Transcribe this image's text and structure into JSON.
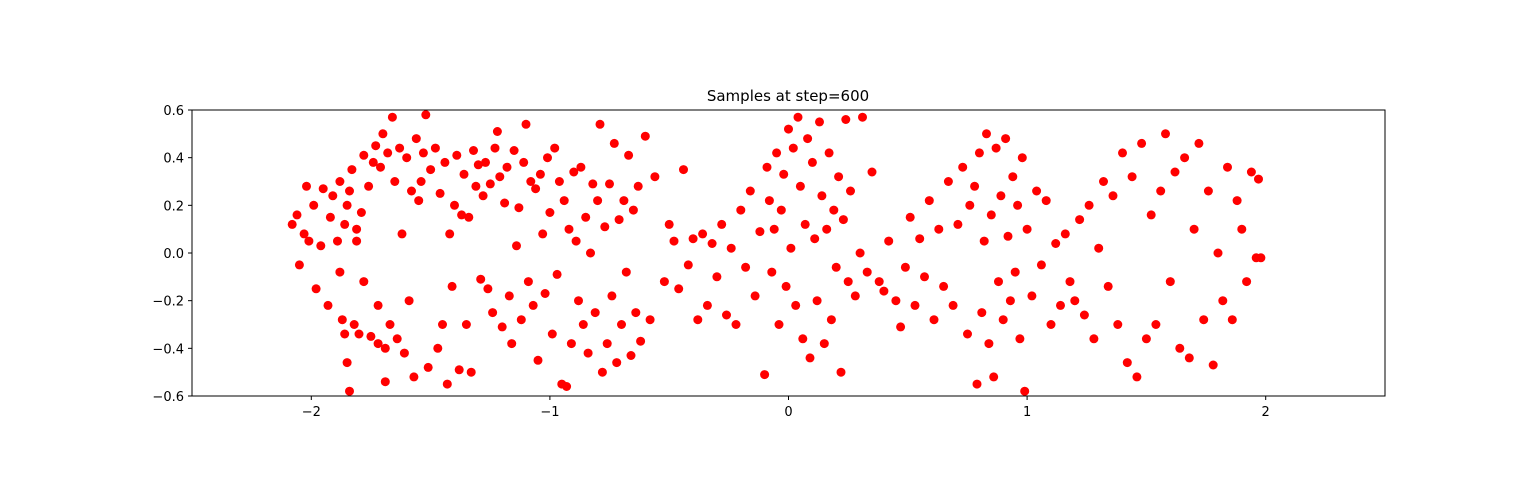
{
  "chart_data": {
    "type": "scatter",
    "title": "Samples at step=600",
    "xlabel": "",
    "ylabel": "",
    "xlim": [
      -2.5,
      2.5
    ],
    "ylim": [
      -0.6,
      0.6
    ],
    "xticks": [
      -2,
      -1,
      0,
      1,
      2
    ],
    "xtick_labels": [
      "−2",
      "−1",
      "0",
      "1",
      "2"
    ],
    "yticks": [
      -0.6,
      -0.4,
      -0.2,
      0.0,
      0.2,
      0.4,
      0.6
    ],
    "ytick_labels": [
      "−0.6",
      "−0.4",
      "−0.2",
      "0.0",
      "0.2",
      "0.4",
      "0.6"
    ],
    "grid": false,
    "marker_color": "#ff0000",
    "series": [
      {
        "points": [
          [
            -2.08,
            0.12
          ],
          [
            -2.06,
            0.16
          ],
          [
            -2.05,
            -0.05
          ],
          [
            -2.03,
            0.08
          ],
          [
            -2.02,
            0.28
          ],
          [
            -2.01,
            0.05
          ],
          [
            -1.99,
            0.2
          ],
          [
            -1.98,
            -0.15
          ],
          [
            -1.96,
            0.03
          ],
          [
            -1.95,
            0.27
          ],
          [
            -1.93,
            -0.22
          ],
          [
            -1.92,
            0.15
          ],
          [
            -1.91,
            0.24
          ],
          [
            -1.89,
            0.05
          ],
          [
            -1.88,
            -0.08
          ],
          [
            -1.88,
            0.3
          ],
          [
            -1.87,
            -0.28
          ],
          [
            -1.86,
            0.12
          ],
          [
            -1.86,
            -0.34
          ],
          [
            -1.85,
            0.2
          ],
          [
            -1.85,
            -0.46
          ],
          [
            -1.84,
            0.26
          ],
          [
            -1.84,
            -0.58
          ],
          [
            -1.83,
            0.35
          ],
          [
            -1.82,
            -0.3
          ],
          [
            -1.81,
            0.1
          ],
          [
            -1.81,
            0.05
          ],
          [
            -1.8,
            -0.34
          ],
          [
            -1.79,
            0.17
          ],
          [
            -1.78,
            0.41
          ],
          [
            -1.78,
            -0.12
          ],
          [
            -1.76,
            0.28
          ],
          [
            -1.75,
            -0.35
          ],
          [
            -1.74,
            0.38
          ],
          [
            -1.73,
            0.45
          ],
          [
            -1.72,
            -0.38
          ],
          [
            -1.72,
            -0.22
          ],
          [
            -1.71,
            0.36
          ],
          [
            -1.7,
            0.5
          ],
          [
            -1.69,
            -0.4
          ],
          [
            -1.69,
            -0.54
          ],
          [
            -1.68,
            0.42
          ],
          [
            -1.67,
            -0.3
          ],
          [
            -1.66,
            0.57
          ],
          [
            -1.65,
            0.3
          ],
          [
            -1.64,
            -0.36
          ],
          [
            -1.63,
            0.44
          ],
          [
            -1.62,
            0.08
          ],
          [
            -1.61,
            -0.42
          ],
          [
            -1.6,
            0.4
          ],
          [
            -1.59,
            -0.2
          ],
          [
            -1.58,
            0.26
          ],
          [
            -1.57,
            -0.52
          ],
          [
            -1.56,
            0.48
          ],
          [
            -1.55,
            0.22
          ],
          [
            -1.54,
            0.3
          ],
          [
            -1.53,
            0.42
          ],
          [
            -1.52,
            0.58
          ],
          [
            -1.51,
            -0.48
          ],
          [
            -1.5,
            0.35
          ],
          [
            -1.48,
            0.44
          ],
          [
            -1.47,
            -0.4
          ],
          [
            -1.46,
            0.25
          ],
          [
            -1.45,
            -0.3
          ],
          [
            -1.44,
            0.38
          ],
          [
            -1.43,
            -0.55
          ],
          [
            -1.42,
            0.08
          ],
          [
            -1.41,
            -0.14
          ],
          [
            -1.4,
            0.2
          ],
          [
            -1.39,
            0.41
          ],
          [
            -1.38,
            -0.49
          ],
          [
            -1.37,
            0.16
          ],
          [
            -1.36,
            0.33
          ],
          [
            -1.35,
            -0.3
          ],
          [
            -1.34,
            0.15
          ],
          [
            -1.33,
            -0.5
          ],
          [
            -1.32,
            0.43
          ],
          [
            -1.31,
            0.28
          ],
          [
            -1.3,
            0.37
          ],
          [
            -1.29,
            -0.11
          ],
          [
            -1.28,
            0.24
          ],
          [
            -1.27,
            0.38
          ],
          [
            -1.26,
            -0.15
          ],
          [
            -1.25,
            0.29
          ],
          [
            -1.24,
            -0.25
          ],
          [
            -1.23,
            0.44
          ],
          [
            -1.22,
            0.51
          ],
          [
            -1.21,
            0.32
          ],
          [
            -1.2,
            -0.31
          ],
          [
            -1.19,
            0.21
          ],
          [
            -1.18,
            0.36
          ],
          [
            -1.17,
            -0.18
          ],
          [
            -1.16,
            -0.38
          ],
          [
            -1.15,
            0.43
          ],
          [
            -1.14,
            0.03
          ],
          [
            -1.13,
            0.19
          ],
          [
            -1.12,
            -0.28
          ],
          [
            -1.11,
            0.38
          ],
          [
            -1.1,
            0.54
          ],
          [
            -1.09,
            -0.12
          ],
          [
            -1.08,
            0.3
          ],
          [
            -1.07,
            -0.22
          ],
          [
            -1.06,
            0.27
          ],
          [
            -1.05,
            -0.45
          ],
          [
            -1.04,
            0.33
          ],
          [
            -1.03,
            0.08
          ],
          [
            -1.02,
            -0.17
          ],
          [
            -1.01,
            0.4
          ],
          [
            -1.0,
            0.17
          ],
          [
            -0.99,
            -0.34
          ],
          [
            -0.98,
            0.44
          ],
          [
            -0.97,
            -0.09
          ],
          [
            -0.96,
            0.3
          ],
          [
            -0.95,
            -0.55
          ],
          [
            -0.94,
            0.22
          ],
          [
            -0.93,
            -0.56
          ],
          [
            -0.92,
            0.1
          ],
          [
            -0.91,
            -0.38
          ],
          [
            -0.9,
            0.34
          ],
          [
            -0.89,
            0.05
          ],
          [
            -0.88,
            -0.2
          ],
          [
            -0.87,
            0.36
          ],
          [
            -0.86,
            -0.3
          ],
          [
            -0.85,
            0.15
          ],
          [
            -0.84,
            -0.42
          ],
          [
            -0.83,
            0.0
          ],
          [
            -0.82,
            0.29
          ],
          [
            -0.81,
            -0.25
          ],
          [
            -0.8,
            0.22
          ],
          [
            -0.79,
            0.54
          ],
          [
            -0.78,
            -0.5
          ],
          [
            -0.77,
            0.11
          ],
          [
            -0.76,
            -0.38
          ],
          [
            -0.75,
            0.29
          ],
          [
            -0.74,
            -0.18
          ],
          [
            -0.73,
            0.46
          ],
          [
            -0.72,
            -0.46
          ],
          [
            -0.71,
            0.14
          ],
          [
            -0.7,
            -0.3
          ],
          [
            -0.69,
            0.22
          ],
          [
            -0.68,
            -0.08
          ],
          [
            -0.67,
            0.41
          ],
          [
            -0.66,
            -0.43
          ],
          [
            -0.65,
            0.18
          ],
          [
            -0.64,
            -0.25
          ],
          [
            -0.63,
            0.28
          ],
          [
            -0.62,
            -0.37
          ],
          [
            -0.6,
            0.49
          ],
          [
            -0.58,
            -0.28
          ],
          [
            -0.56,
            0.32
          ],
          [
            -0.52,
            -0.12
          ],
          [
            -0.5,
            0.12
          ],
          [
            -0.48,
            0.05
          ],
          [
            -0.46,
            -0.15
          ],
          [
            -0.44,
            0.35
          ],
          [
            -0.42,
            -0.05
          ],
          [
            -0.4,
            0.06
          ],
          [
            -0.38,
            -0.28
          ],
          [
            -0.36,
            0.08
          ],
          [
            -0.34,
            -0.22
          ],
          [
            -0.32,
            0.04
          ],
          [
            -0.3,
            -0.1
          ],
          [
            -0.28,
            0.12
          ],
          [
            -0.26,
            -0.26
          ],
          [
            -0.24,
            0.02
          ],
          [
            -0.22,
            -0.3
          ],
          [
            -0.2,
            0.18
          ],
          [
            -0.18,
            -0.06
          ],
          [
            -0.16,
            0.26
          ],
          [
            -0.14,
            -0.18
          ],
          [
            -0.12,
            0.09
          ],
          [
            -0.1,
            -0.51
          ],
          [
            -0.09,
            0.36
          ],
          [
            -0.08,
            0.22
          ],
          [
            -0.07,
            -0.08
          ],
          [
            -0.06,
            0.1
          ],
          [
            -0.05,
            0.42
          ],
          [
            -0.04,
            -0.3
          ],
          [
            -0.03,
            0.18
          ],
          [
            -0.02,
            0.33
          ],
          [
            -0.01,
            -0.14
          ],
          [
            0.0,
            0.52
          ],
          [
            0.01,
            0.02
          ],
          [
            0.02,
            0.44
          ],
          [
            0.03,
            -0.22
          ],
          [
            0.04,
            0.57
          ],
          [
            0.05,
            0.28
          ],
          [
            0.06,
            -0.36
          ],
          [
            0.07,
            0.12
          ],
          [
            0.08,
            0.48
          ],
          [
            0.09,
            -0.44
          ],
          [
            0.1,
            0.38
          ],
          [
            0.11,
            0.06
          ],
          [
            0.12,
            -0.2
          ],
          [
            0.13,
            0.55
          ],
          [
            0.14,
            0.24
          ],
          [
            0.15,
            -0.38
          ],
          [
            0.16,
            0.1
          ],
          [
            0.17,
            0.42
          ],
          [
            0.18,
            -0.28
          ],
          [
            0.19,
            0.18
          ],
          [
            0.2,
            -0.06
          ],
          [
            0.21,
            0.32
          ],
          [
            0.22,
            -0.5
          ],
          [
            0.23,
            0.14
          ],
          [
            0.24,
            0.56
          ],
          [
            0.25,
            -0.12
          ],
          [
            0.26,
            0.26
          ],
          [
            0.28,
            -0.18
          ],
          [
            0.3,
            0.0
          ],
          [
            0.31,
            0.57
          ],
          [
            0.33,
            -0.08
          ],
          [
            0.35,
            0.34
          ],
          [
            0.38,
            -0.12
          ],
          [
            0.4,
            -0.16
          ],
          [
            0.42,
            0.05
          ],
          [
            0.45,
            -0.2
          ],
          [
            0.47,
            -0.31
          ],
          [
            0.49,
            -0.06
          ],
          [
            0.51,
            0.15
          ],
          [
            0.53,
            -0.22
          ],
          [
            0.55,
            0.06
          ],
          [
            0.57,
            -0.1
          ],
          [
            0.59,
            0.22
          ],
          [
            0.61,
            -0.28
          ],
          [
            0.63,
            0.1
          ],
          [
            0.65,
            -0.14
          ],
          [
            0.67,
            0.3
          ],
          [
            0.69,
            -0.22
          ],
          [
            0.71,
            0.12
          ],
          [
            0.73,
            0.36
          ],
          [
            0.75,
            -0.34
          ],
          [
            0.76,
            0.2
          ],
          [
            0.78,
            0.28
          ],
          [
            0.79,
            -0.55
          ],
          [
            0.8,
            0.42
          ],
          [
            0.81,
            -0.25
          ],
          [
            0.82,
            0.05
          ],
          [
            0.83,
            0.5
          ],
          [
            0.84,
            -0.38
          ],
          [
            0.85,
            0.16
          ],
          [
            0.86,
            -0.52
          ],
          [
            0.87,
            0.44
          ],
          [
            0.88,
            -0.12
          ],
          [
            0.89,
            0.24
          ],
          [
            0.9,
            -0.28
          ],
          [
            0.91,
            0.48
          ],
          [
            0.92,
            0.07
          ],
          [
            0.93,
            -0.2
          ],
          [
            0.94,
            0.32
          ],
          [
            0.95,
            -0.08
          ],
          [
            0.96,
            0.2
          ],
          [
            0.97,
            -0.36
          ],
          [
            0.98,
            0.4
          ],
          [
            0.99,
            -0.58
          ],
          [
            1.0,
            0.1
          ],
          [
            1.02,
            -0.18
          ],
          [
            1.04,
            0.26
          ],
          [
            1.06,
            -0.05
          ],
          [
            1.08,
            0.22
          ],
          [
            1.1,
            -0.3
          ],
          [
            1.12,
            0.04
          ],
          [
            1.14,
            -0.22
          ],
          [
            1.16,
            0.08
          ],
          [
            1.18,
            -0.12
          ],
          [
            1.2,
            -0.2
          ],
          [
            1.22,
            0.14
          ],
          [
            1.24,
            -0.26
          ],
          [
            1.26,
            0.2
          ],
          [
            1.28,
            -0.36
          ],
          [
            1.3,
            0.02
          ],
          [
            1.32,
            0.3
          ],
          [
            1.34,
            -0.14
          ],
          [
            1.36,
            0.24
          ],
          [
            1.38,
            -0.3
          ],
          [
            1.4,
            0.42
          ],
          [
            1.42,
            -0.46
          ],
          [
            1.44,
            0.32
          ],
          [
            1.46,
            -0.52
          ],
          [
            1.48,
            0.46
          ],
          [
            1.5,
            -0.36
          ],
          [
            1.52,
            0.16
          ],
          [
            1.54,
            -0.3
          ],
          [
            1.56,
            0.26
          ],
          [
            1.58,
            0.5
          ],
          [
            1.6,
            -0.12
          ],
          [
            1.62,
            0.34
          ],
          [
            1.64,
            -0.4
          ],
          [
            1.66,
            0.4
          ],
          [
            1.68,
            -0.44
          ],
          [
            1.7,
            0.1
          ],
          [
            1.72,
            0.46
          ],
          [
            1.74,
            -0.28
          ],
          [
            1.76,
            0.26
          ],
          [
            1.78,
            -0.47
          ],
          [
            1.8,
            0.0
          ],
          [
            1.82,
            -0.2
          ],
          [
            1.84,
            0.36
          ],
          [
            1.86,
            -0.28
          ],
          [
            1.88,
            0.22
          ],
          [
            1.9,
            0.1
          ],
          [
            1.92,
            -0.12
          ],
          [
            1.94,
            0.34
          ],
          [
            1.96,
            -0.02
          ],
          [
            1.97,
            0.31
          ],
          [
            1.98,
            -0.02
          ]
        ]
      }
    ]
  }
}
